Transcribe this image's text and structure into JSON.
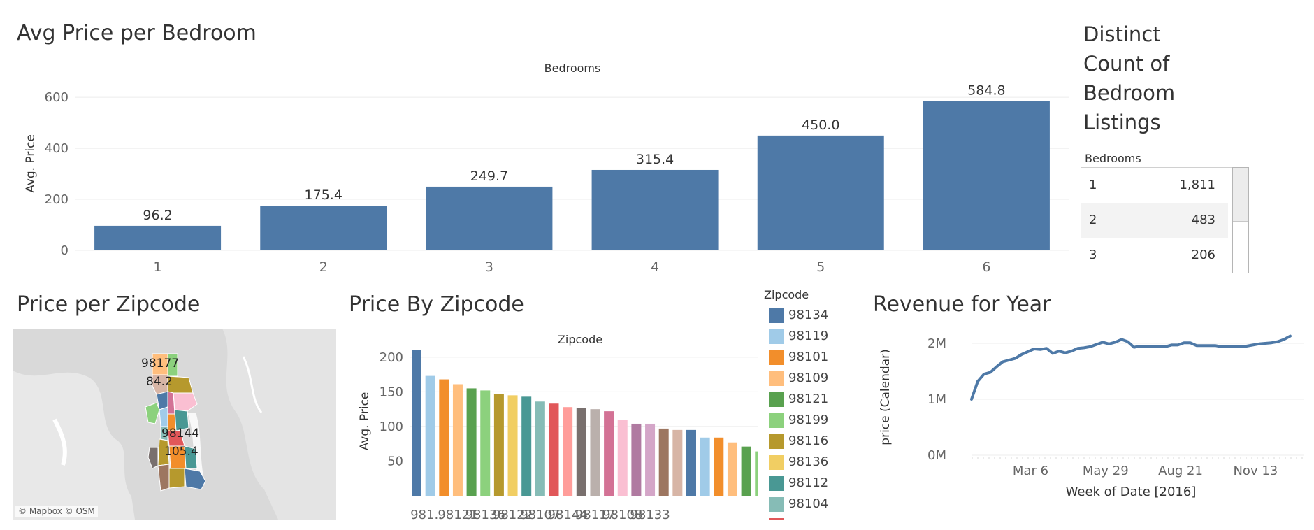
{
  "titles": {
    "avg_price_bedroom": "Avg Price per Bedroom",
    "distinct_count_lines": [
      "Distinct",
      "Count of",
      "Bedroom",
      "Listings"
    ],
    "price_per_zipcode": "Price per Zipcode",
    "price_by_zipcode": "Price By Zipcode",
    "revenue_for_year": "Revenue for Year"
  },
  "bedroom_table": {
    "header": "Bedrooms",
    "rows": [
      {
        "bedrooms": "1",
        "count": "1,811"
      },
      {
        "bedrooms": "2",
        "count": "483"
      },
      {
        "bedrooms": "3",
        "count": "206"
      }
    ]
  },
  "map": {
    "credit": "© Mapbox © OSM",
    "labels": [
      {
        "zip": "98177",
        "value": "84.2"
      },
      {
        "zip": "98144",
        "value": "105.4"
      }
    ]
  },
  "legend": {
    "title": "Zipcode",
    "items": [
      {
        "label": "98134",
        "color": "#4e79a7"
      },
      {
        "label": "98119",
        "color": "#a0cbe8"
      },
      {
        "label": "98101",
        "color": "#f28e2b"
      },
      {
        "label": "98109",
        "color": "#ffbe7d"
      },
      {
        "label": "98121",
        "color": "#59a14f"
      },
      {
        "label": "98199",
        "color": "#8cd17d"
      },
      {
        "label": "98116",
        "color": "#b6992d"
      },
      {
        "label": "98136",
        "color": "#f1ce63"
      },
      {
        "label": "98112",
        "color": "#499894"
      },
      {
        "label": "98104",
        "color": "#86bcb6"
      },
      {
        "label": "",
        "color": "#e15759"
      }
    ]
  },
  "chart_data": [
    {
      "type": "bar",
      "title": "Avg Price per Bedroom",
      "column_header": "Bedrooms",
      "xlabel": "",
      "ylabel": "Avg. Price",
      "categories": [
        "1",
        "2",
        "3",
        "4",
        "5",
        "6"
      ],
      "values": [
        96.2,
        175.4,
        249.7,
        315.4,
        450.0,
        584.8
      ],
      "data_labels": [
        "96.2",
        "175.4",
        "249.7",
        "315.4",
        "450.0",
        "584.8"
      ],
      "yticks": [
        0,
        200,
        400,
        600
      ],
      "ylim": [
        0,
        680
      ],
      "color": "#4e79a7",
      "grid": true
    },
    {
      "type": "bar",
      "title": "Price By Zipcode",
      "column_header": "Zipcode",
      "ylabel": "Avg. Price",
      "yticks": [
        50,
        100,
        150,
        200
      ],
      "ylim": [
        0,
        215
      ],
      "visible_x_labels": [
        "981..",
        "98121",
        "98136",
        "98122",
        "98107",
        "98144",
        "98117",
        "98108",
        "98133"
      ],
      "values": [
        210,
        173,
        168,
        161,
        155,
        152,
        147,
        145,
        143,
        136,
        133,
        128,
        127,
        125,
        122,
        110,
        104,
        104,
        97,
        95,
        95,
        84,
        84,
        77,
        71,
        64
      ],
      "colors": [
        "#4e79a7",
        "#a0cbe8",
        "#f28e2b",
        "#ffbe7d",
        "#59a14f",
        "#8cd17d",
        "#b6992d",
        "#f1ce63",
        "#499894",
        "#86bcb6",
        "#e15759",
        "#ff9d9a",
        "#79706e",
        "#bab0ac",
        "#d37295",
        "#fabfd2",
        "#b07aa1",
        "#d4a6c8",
        "#9d7660",
        "#d7b5a6",
        "#4e79a7",
        "#a0cbe8",
        "#f28e2b",
        "#ffbe7d",
        "#59a14f",
        "#8cd17d"
      ],
      "grid": true
    },
    {
      "type": "line",
      "title": "Revenue for Year",
      "xlabel": "Week of Date [2016]",
      "ylabel": "price (Calendar)",
      "x_ticks": [
        "Mar 6",
        "May 29",
        "Aug 21",
        "Nov 13"
      ],
      "y_ticks": [
        "0M",
        "1M",
        "2M"
      ],
      "ylim": [
        0,
        2.2
      ],
      "y_unit": "M",
      "values": [
        1.0,
        1.32,
        1.45,
        1.48,
        1.58,
        1.67,
        1.7,
        1.73,
        1.8,
        1.85,
        1.9,
        1.89,
        1.91,
        1.82,
        1.86,
        1.83,
        1.86,
        1.91,
        1.92,
        1.94,
        1.98,
        2.02,
        1.99,
        2.02,
        2.07,
        2.03,
        1.93,
        1.95,
        1.94,
        1.94,
        1.95,
        1.94,
        1.97,
        1.97,
        2.01,
        2.01,
        1.96,
        1.96,
        1.96,
        1.96,
        1.94,
        1.94,
        1.94,
        1.94,
        1.95,
        1.97,
        1.99,
        2.0,
        2.01,
        2.03,
        2.07,
        2.13
      ],
      "color": "#4e79a7",
      "grid": true
    }
  ]
}
